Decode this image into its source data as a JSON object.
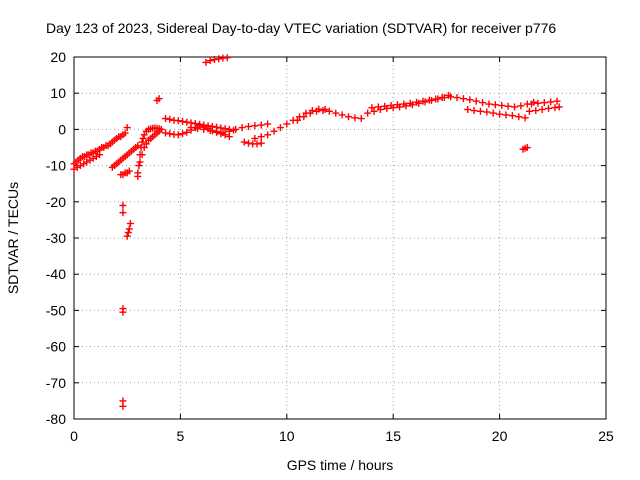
{
  "chart_data": {
    "type": "scatter",
    "title": "Day 123 of 2023, Sidereal Day-to-day VTEC variation (SDTVAR) for receiver p776",
    "xlabel": "GPS time / hours",
    "ylabel": "SDTVAR / TECUs",
    "xlim": [
      0,
      25
    ],
    "ylim": [
      -80,
      20
    ],
    "xticks": [
      0,
      5,
      10,
      15,
      20,
      25
    ],
    "yticks": [
      -80,
      -70,
      -60,
      -50,
      -40,
      -30,
      -20,
      -10,
      0,
      10,
      20
    ],
    "grid": true,
    "marker": "+",
    "color": "#ff0000",
    "series": [
      {
        "name": "SDTVAR",
        "x": [
          0.0,
          0.1,
          0.2,
          0.3,
          0.4,
          0.5,
          0.6,
          0.7,
          0.8,
          0.9,
          1.0,
          1.1,
          1.2,
          1.3,
          1.4,
          1.5,
          1.6,
          1.7,
          1.8,
          1.9,
          2.0,
          2.1,
          2.2,
          2.3,
          2.4,
          2.5,
          0.0,
          0.15,
          0.3,
          0.45,
          0.6,
          0.75,
          0.9,
          1.05,
          1.2,
          1.8,
          1.9,
          2.0,
          2.1,
          2.2,
          2.3,
          2.4,
          2.5,
          2.6,
          2.7,
          2.8,
          2.9,
          3.0,
          2.2,
          2.3,
          2.4,
          2.5,
          2.6,
          2.5,
          2.55,
          2.6,
          2.65,
          2.3,
          2.3,
          2.3,
          2.3,
          2.3,
          2.3,
          3.0,
          3.05,
          3.1,
          3.15,
          3.2,
          3.25,
          3.3,
          3.4,
          3.5,
          3.6,
          3.7,
          3.8,
          3.9,
          4.0,
          3.0,
          3.1,
          3.2,
          3.3,
          3.4,
          3.5,
          3.6,
          3.7,
          3.8,
          3.9,
          4.0,
          4.1,
          3.9,
          4.0,
          4.3,
          4.5,
          4.7,
          4.9,
          5.1,
          5.3,
          5.5,
          5.7,
          5.9,
          6.1,
          6.3,
          6.5,
          6.7,
          6.9,
          7.1,
          7.3,
          7.5,
          4.3,
          4.5,
          4.7,
          4.9,
          5.1,
          5.3,
          5.5,
          5.7,
          5.9,
          6.1,
          6.3,
          6.5,
          6.7,
          6.9,
          7.1,
          7.3,
          5.5,
          5.8,
          6.1,
          6.4,
          6.7,
          7.0,
          6.2,
          6.4,
          6.6,
          6.8,
          7.0,
          7.2,
          7.3,
          7.6,
          7.9,
          8.2,
          8.5,
          8.8,
          9.1,
          8.0,
          8.2,
          8.4,
          8.6,
          8.8,
          8.5,
          8.8,
          9.1,
          9.4,
          9.7,
          10.0,
          10.3,
          10.6,
          10.9,
          11.2,
          11.5,
          11.8,
          10.5,
          10.8,
          11.1,
          11.4,
          11.7,
          12.0,
          12.3,
          12.6,
          12.9,
          13.2,
          13.5,
          13.8,
          14.1,
          14.4,
          14.7,
          15.0,
          15.3,
          15.6,
          15.9,
          16.2,
          16.5,
          16.8,
          17.1,
          17.4,
          17.7,
          18.0,
          14.0,
          14.3,
          14.6,
          14.9,
          15.2,
          15.5,
          15.8,
          16.1,
          16.4,
          16.7,
          17.0,
          17.3,
          17.6,
          18.3,
          18.6,
          18.9,
          19.2,
          19.5,
          19.8,
          20.1,
          20.4,
          20.7,
          21.0,
          21.3,
          21.6,
          18.5,
          18.8,
          19.1,
          19.4,
          19.7,
          20.0,
          20.3,
          20.6,
          20.9,
          21.2,
          21.4,
          21.7,
          22.0,
          22.3,
          22.6,
          22.8,
          21.5,
          21.8,
          22.1,
          22.4,
          22.7,
          21.1,
          21.2,
          21.3
        ],
        "y": [
          -9.5,
          -9,
          -8.5,
          -8,
          -7.5,
          -7.5,
          -7,
          -7,
          -6.5,
          -6.5,
          -6,
          -6,
          -5.5,
          -5,
          -5,
          -4.5,
          -4.5,
          -4,
          -3.5,
          -3,
          -2.5,
          -2,
          -2,
          -1.5,
          -1,
          0.5,
          -11,
          -10.5,
          -10,
          -9.5,
          -9,
          -8.5,
          -8,
          -7.5,
          -7,
          -10.5,
          -10,
          -9.5,
          -9,
          -8.5,
          -8,
          -7.5,
          -7,
          -6.5,
          -6,
          -5.5,
          -5,
          -4.5,
          -12.5,
          -12.5,
          -12,
          -12,
          -11.5,
          -29.5,
          -28.5,
          -27.5,
          -26,
          -21,
          -23,
          -49.5,
          -50.5,
          -75,
          -76.5,
          -13,
          -10,
          -7,
          -5,
          -3.5,
          -2.5,
          -1.5,
          -0.5,
          0,
          0.2,
          0.3,
          0.4,
          0.3,
          0.2,
          -12,
          -9,
          -7,
          -5,
          -4,
          -3,
          -2.5,
          -2,
          -1.5,
          -1,
          -0.5,
          0,
          8,
          8.5,
          3,
          2.8,
          2.5,
          2.4,
          2.2,
          2.0,
          1.8,
          1.6,
          1.4,
          1.2,
          1.0,
          0.8,
          0.6,
          0.4,
          0.2,
          0,
          -0.2,
          -1,
          -1.2,
          -1.4,
          -1.5,
          -1.2,
          -0.8,
          -0.2,
          0.5,
          1.0,
          0.6,
          0.2,
          -0.4,
          -0.8,
          -1.2,
          -1.5,
          -2.0,
          0.5,
          0.2,
          0,
          -0.3,
          -0.6,
          -0.9,
          18.5,
          19.0,
          19.3,
          19.5,
          19.7,
          19.8,
          -0.5,
          0,
          0.5,
          0.8,
          1.0,
          1.2,
          1.5,
          -3.5,
          -3.8,
          -4.0,
          -4.0,
          -3.8,
          -2.5,
          -2.0,
          -1.5,
          -0.5,
          0.5,
          1.5,
          2.5,
          3.5,
          4.5,
          5.2,
          5.6,
          5.5,
          2.5,
          3.5,
          4.5,
          5.0,
          5.2,
          5.0,
          4.5,
          4.0,
          3.5,
          3.2,
          3.0,
          4.5,
          5.0,
          5.5,
          5.8,
          6.0,
          6.2,
          6.5,
          6.8,
          7.2,
          7.6,
          8.0,
          8.4,
          8.8,
          9.0,
          8.8,
          6.0,
          6.2,
          6.4,
          6.6,
          6.8,
          7.0,
          7.2,
          7.5,
          7.8,
          8.1,
          8.4,
          8.8,
          9.4,
          8.5,
          8.2,
          7.8,
          7.4,
          7.0,
          6.8,
          6.6,
          6.4,
          6.2,
          6.5,
          7.0,
          7.5,
          5.5,
          5.2,
          5.0,
          4.8,
          4.5,
          4.2,
          4.0,
          3.8,
          3.5,
          3.2,
          5.0,
          5.2,
          5.5,
          5.8,
          6.0,
          6.2,
          7.0,
          7.2,
          7.4,
          7.6,
          7.8,
          -5.5,
          -5.2,
          -5.0
        ]
      }
    ]
  }
}
